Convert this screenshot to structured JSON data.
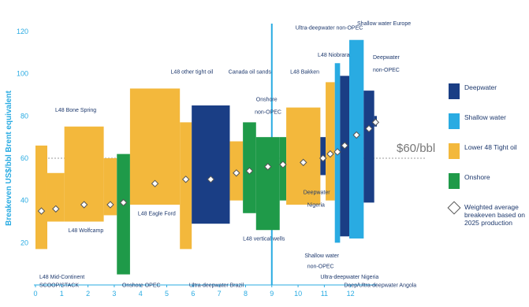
{
  "chart_data": {
    "type": "bar",
    "ylabel": "Breakeven US$/bbl Brent equivalent",
    "xlim": [
      0,
      13
    ],
    "ylim": [
      0,
      120
    ],
    "xticks": [
      0,
      1,
      2,
      3,
      4,
      5,
      6,
      7,
      8,
      9,
      10,
      11,
      12
    ],
    "yticks": [
      20,
      40,
      60,
      80,
      100,
      120
    ],
    "reference_line": {
      "value": 60,
      "label": "$60/bbl"
    },
    "divider_x": 9,
    "series": [
      {
        "name": "Deepwater",
        "color": "#1a3e85"
      },
      {
        "name": "Shallow water",
        "color": "#29abe2"
      },
      {
        "name": "Lower 48 Tight oil",
        "color": "#f3b83c"
      },
      {
        "name": "Onshore",
        "color": "#1f9a49"
      }
    ],
    "weighted_average_label": "Weighted average breakeven based on 2025 production",
    "bars": [
      {
        "label": "L48 Mid-Continent SCOOP/STACK",
        "category": "Lower 48 Tight oil",
        "x0": 0.0,
        "x1": 0.45,
        "low": 17,
        "high": 66,
        "avg": 35
      },
      {
        "label": "",
        "category": "Lower 48 Tight oil",
        "x0": 0.45,
        "x1": 1.1,
        "low": 30,
        "high": 53,
        "avg": 36
      },
      {
        "label": "L48 Bone Spring",
        "category": "Lower 48 Tight oil",
        "x0": 1.1,
        "x1": 2.6,
        "low": 30,
        "high": 75,
        "avg": 38
      },
      {
        "label": "L48 Wolfcamp",
        "category": "Lower 48 Tight oil",
        "x0": 2.6,
        "x1": 3.1,
        "low": 33,
        "high": 60,
        "avg": 38
      },
      {
        "label": "Onshore OPEC",
        "category": "Onshore",
        "x0": 3.1,
        "x1": 3.6,
        "low": 5,
        "high": 62,
        "avg": 39
      },
      {
        "label": "L48 Eagle Ford",
        "category": "Lower 48 Tight oil",
        "x0": 3.6,
        "x1": 5.5,
        "low": 38,
        "high": 93,
        "avg": 48
      },
      {
        "label": "L48 other tight oil",
        "category": "Lower 48 Tight oil",
        "x0": 5.5,
        "x1": 5.95,
        "low": 17,
        "high": 77,
        "avg": 50
      },
      {
        "label": "Ultra-deepwater Brazil",
        "category": "Deepwater",
        "x0": 5.95,
        "x1": 7.4,
        "low": 29,
        "high": 85,
        "avg": 50
      },
      {
        "label": "",
        "category": "Lower 48 Tight oil",
        "x0": 7.4,
        "x1": 7.9,
        "low": 40,
        "high": 68,
        "avg": 53
      },
      {
        "label": "L48 vertical wells",
        "category": "Onshore",
        "x0": 7.9,
        "x1": 8.4,
        "low": 34,
        "high": 77,
        "avg": 54
      },
      {
        "label": "Canada oil sands",
        "category": "Onshore",
        "x0": 8.4,
        "x1": 9.3,
        "low": 26,
        "high": 70,
        "avg": 56
      },
      {
        "label": "Onshore non-OPEC",
        "category": "Onshore",
        "x0": 9.3,
        "x1": 9.55,
        "low": 40,
        "high": 70,
        "avg": 57
      },
      {
        "label": "L48 Bakken",
        "category": "Lower 48 Tight oil",
        "x0": 9.55,
        "x1": 10.85,
        "low": 38,
        "high": 84,
        "avg": 58
      },
      {
        "label": "Deepwater Nigeria",
        "category": "Deepwater",
        "x0": 10.85,
        "x1": 11.05,
        "low": 52,
        "high": 70,
        "avg": 60
      },
      {
        "label": "L48 Niobrara",
        "category": "Lower 48 Tight oil",
        "x0": 11.05,
        "x1": 11.4,
        "low": 40,
        "high": 96,
        "avg": 62
      },
      {
        "label": "Shallow water non-OPEC",
        "category": "Shallow water",
        "x0": 11.4,
        "x1": 11.6,
        "low": 20,
        "high": 105,
        "avg": 63
      },
      {
        "label": "Ultra-deepwater Nigeria",
        "category": "Deepwater",
        "x0": 11.6,
        "x1": 11.95,
        "low": 23,
        "high": 99,
        "avg": 66
      },
      {
        "label": "Shallow water Europe",
        "category": "Shallow water",
        "x0": 11.95,
        "x1": 12.5,
        "low": 22,
        "high": 116,
        "avg": 71
      },
      {
        "label": "Deep/Ultra-deepwater Angola",
        "category": "Deepwater",
        "x0": 12.5,
        "x1": 12.9,
        "low": 39,
        "high": 92,
        "avg": 74
      },
      {
        "label": "Deepwater non-OPEC",
        "category": "Deepwater",
        "x0": 12.9,
        "x1": 13.0,
        "low": 75,
        "high": 80,
        "avg": 77
      }
    ],
    "annotations": [
      {
        "text": "L48 Mid-Continent",
        "x": 0.15,
        "y": 3
      },
      {
        "text": "SCOOP/STACK",
        "x": 0.15,
        "y": -1
      },
      {
        "text": "L48 Bone Spring",
        "x": 0.75,
        "y": 82
      },
      {
        "text": "L48 Wolfcamp",
        "x": 1.25,
        "y": 25
      },
      {
        "text": "Onshore OPEC",
        "x": 3.3,
        "y": -1
      },
      {
        "text": "L48 Eagle Ford",
        "x": 3.9,
        "y": 33
      },
      {
        "text": "L48 other tight oil",
        "x": 5.15,
        "y": 100
      },
      {
        "text": "Ultra-deepwater Brazil",
        "x": 5.85,
        "y": -1
      },
      {
        "text": "L48 vertical wells",
        "x": 7.9,
        "y": 21
      },
      {
        "text": "Canada oil sands",
        "x": 7.35,
        "y": 100
      },
      {
        "text": "Onshore",
        "x": 8.4,
        "y": 87
      },
      {
        "text": "non-OPEC",
        "x": 8.35,
        "y": 81
      },
      {
        "text": "L48 Bakken",
        "x": 9.7,
        "y": 100
      },
      {
        "text": "Deepwater",
        "x": 10.2,
        "y": 43
      },
      {
        "text": "Nigeria",
        "x": 10.35,
        "y": 37
      },
      {
        "text": "Shallow water",
        "x": 10.25,
        "y": 13
      },
      {
        "text": "non-OPEC",
        "x": 10.35,
        "y": 8
      },
      {
        "text": "Ultra-deepwater non-OPEC",
        "x": 9.9,
        "y": 121
      },
      {
        "text": "L48 Niobrara",
        "x": 10.75,
        "y": 108
      },
      {
        "text": "Shallow water Europe",
        "x": 12.25,
        "y": 123
      },
      {
        "text": "Deepwater",
        "x": 12.85,
        "y": 107
      },
      {
        "text": "non-OPEC",
        "x": 12.85,
        "y": 101
      },
      {
        "text": "Ultra-deepwater Nigeria",
        "x": 10.85,
        "y": 3
      },
      {
        "text": "Deep/Ultra-deepwater Angola",
        "x": 11.75,
        "y": -1
      }
    ],
    "grid": false,
    "legend_position": "right"
  }
}
